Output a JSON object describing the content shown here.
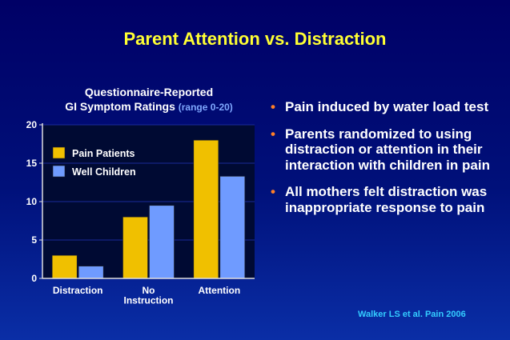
{
  "slide": {
    "title": "Parent Attention vs. Distraction",
    "citation": "Walker LS et al.  Pain 2006"
  },
  "chart_data": {
    "type": "bar",
    "title_line1": "Questionnaire-Reported",
    "title_line2": "GI Symptom Ratings",
    "title_note": "(range 0-20)",
    "categories": [
      [
        "Distraction"
      ],
      [
        "No",
        "Instruction"
      ],
      [
        "Attention"
      ]
    ],
    "series": [
      {
        "name": "Pain Patients",
        "values": [
          3,
          8,
          18
        ],
        "color": "#f0c000"
      },
      {
        "name": "Well Children",
        "values": [
          1.6,
          9.5,
          13.3
        ],
        "color": "#6f9bff"
      }
    ],
    "ylim": [
      0,
      20
    ],
    "yticks": [
      0,
      5,
      10,
      15,
      20
    ],
    "grid": true,
    "legend": "top-left"
  },
  "bullets": [
    "Pain induced by water load test",
    "Parents randomized to using distraction or attention in their interaction with children in pain",
    "All mothers felt distraction was inappropriate response to pain"
  ],
  "colors": {
    "title": "#ffff33",
    "bullet_marker": "#ff7f27",
    "citation": "#33ccff"
  },
  "icons": {
    "bullet_marker": "•"
  }
}
